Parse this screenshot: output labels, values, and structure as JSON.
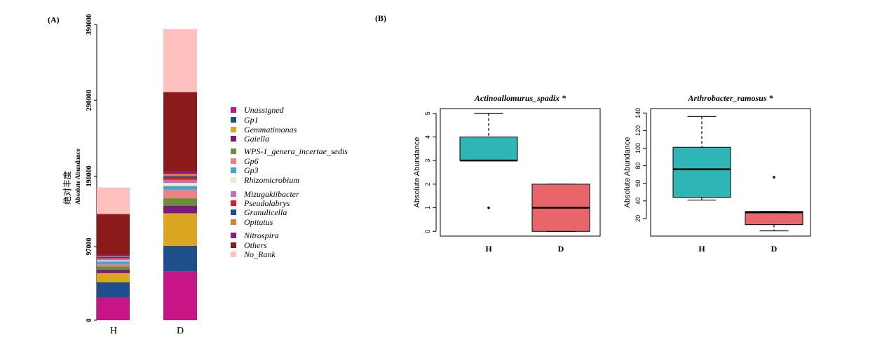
{
  "panels": {
    "a_label": "(A)",
    "b_label": "(B)"
  },
  "chart_data": [
    {
      "type": "bar",
      "stacked": true,
      "ylabel_cn": "绝对丰度",
      "ylabel": "Absolute Abundance",
      "categories": [
        "H",
        "D"
      ],
      "yticks": [
        0,
        97000,
        190000,
        290000,
        390000
      ],
      "ytick_labels": [
        "0",
        "97000",
        "190000",
        "290000",
        "390000"
      ],
      "ylim": [
        0,
        390000
      ],
      "legend_position": "right",
      "series": [
        {
          "name": "Unassigned",
          "color": "#C71585",
          "values": [
            30000,
            64000
          ]
        },
        {
          "name": "Gp1",
          "color": "#1F4E8C",
          "values": [
            20000,
            34000
          ]
        },
        {
          "name": "Gemmatimonas",
          "color": "#DAA520",
          "values": [
            12000,
            43000
          ]
        },
        {
          "name": "Gaiella",
          "color": "#7B1A7B",
          "values": [
            4500,
            10000
          ]
        },
        {
          "name": "WPS-1_genera_incertae_sedis",
          "color": "#6B8E3A",
          "values": [
            4500,
            10000
          ]
        },
        {
          "name": "Gp6",
          "color": "#F08080",
          "values": [
            3000,
            11000
          ]
        },
        {
          "name": "Gp3",
          "color": "#3BA7D9",
          "values": [
            3500,
            5000
          ]
        },
        {
          "name": "Rhizomicrobium",
          "color": "#F5E6C8",
          "values": [
            1500,
            4000
          ]
        },
        {
          "name": "Mizugakiibacter",
          "color": "#C86BB8",
          "values": [
            2000,
            4000
          ]
        },
        {
          "name": "Pseudolabrys",
          "color": "#E31A1C",
          "values": [
            1000,
            2500
          ]
        },
        {
          "name": "Granulicella",
          "color": "#1F4E8C",
          "values": [
            1500,
            2500
          ]
        },
        {
          "name": "Opitutus",
          "color": "#E07B39",
          "values": [
            1000,
            3000
          ]
        },
        {
          "name": "Nitrospira",
          "color": "#8B1A8B",
          "values": [
            1500,
            3000
          ]
        },
        {
          "name": "Others",
          "color": "#8B1A1A",
          "values": [
            54000,
            105000
          ]
        },
        {
          "name": "No_Rank",
          "color": "#FFC0C0",
          "values": [
            35000,
            83000
          ]
        }
      ]
    },
    {
      "type": "box",
      "title": "Actinoallomurus_spadix *",
      "ylabel": "Absolute Abundance",
      "categories": [
        "H",
        "D"
      ],
      "yticks": [
        0,
        1,
        2,
        3,
        4,
        5
      ],
      "ytick_labels": [
        "0",
        "1",
        "2",
        "3",
        "4",
        "5"
      ],
      "ylim": [
        0,
        5
      ],
      "boxes": [
        {
          "group": "H",
          "color": "#2EB5B5",
          "whisker_low": 3,
          "q1": 3,
          "median": 3,
          "q3": 4,
          "whisker_high": 5,
          "outliers": [
            1
          ]
        },
        {
          "group": "D",
          "color": "#E8666A",
          "whisker_low": 0,
          "q1": 0,
          "median": 1,
          "q3": 2,
          "whisker_high": 2,
          "outliers": []
        }
      ]
    },
    {
      "type": "box",
      "title": "Arthrobacter_ramosus *",
      "ylabel": "Absolute Abundance",
      "categories": [
        "H",
        "D"
      ],
      "yticks": [
        20,
        40,
        60,
        80,
        100,
        120,
        140
      ],
      "ytick_labels": [
        "20",
        "40",
        "60",
        "80",
        "100",
        "120",
        "140"
      ],
      "ylim": [
        5,
        140
      ],
      "boxes": [
        {
          "group": "H",
          "color": "#2EB5B5",
          "whisker_low": 41,
          "q1": 44,
          "median": 76,
          "q3": 101,
          "whisker_high": 136,
          "outliers": []
        },
        {
          "group": "D",
          "color": "#E8666A",
          "whisker_low": 6,
          "q1": 13,
          "median": 27,
          "q3": 28,
          "whisker_high": 28,
          "outliers": [
            67
          ]
        }
      ]
    }
  ]
}
